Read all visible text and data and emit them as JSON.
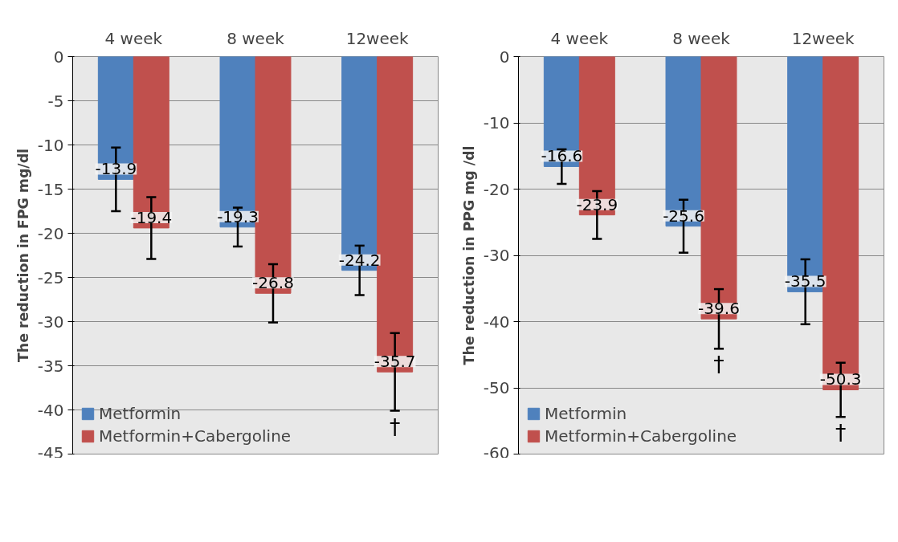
{
  "chart_data": [
    {
      "type": "bar",
      "categories": [
        "4 week",
        "8 week",
        "12week"
      ],
      "ylabel": "The reduction in FPG mg/dl",
      "ylim": [
        -45,
        0
      ],
      "yticks": [
        0,
        -5,
        -10,
        -15,
        -20,
        -25,
        -30,
        -35,
        -40,
        -45
      ],
      "grid": "y",
      "legend": "bottom left",
      "data_labels": true,
      "series": [
        {
          "name": "Metformin",
          "color": "#4f81bd",
          "values": [
            -13.9,
            -19.3,
            -24.2
          ],
          "errors": [
            3.6,
            2.2,
            2.8
          ]
        },
        {
          "name": "Metformin+Cabergoline",
          "color": "#c0504d",
          "values": [
            -19.4,
            -26.8,
            -35.7
          ],
          "errors": [
            3.5,
            3.3,
            4.4
          ]
        }
      ],
      "annotations": [
        "†"
      ]
    },
    {
      "type": "bar",
      "categories": [
        "4 week",
        "8 week",
        "12week"
      ],
      "ylabel": "The reduction in PPG mg /dl",
      "ylim": [
        -60,
        0
      ],
      "yticks": [
        0,
        -10,
        -20,
        -30,
        -40,
        -50,
        -60
      ],
      "grid": "y",
      "legend": "bottom left",
      "data_labels": true,
      "series": [
        {
          "name": "Metformin",
          "color": "#4f81bd",
          "values": [
            -16.6,
            -25.6,
            -35.5
          ],
          "errors": [
            2.6,
            4.0,
            4.9
          ]
        },
        {
          "name": "Metformin+Cabergoline",
          "color": "#c0504d",
          "values": [
            -23.9,
            -39.6,
            -50.3
          ],
          "errors": [
            3.6,
            4.5,
            4.1
          ]
        }
      ],
      "annotations": [
        "†",
        "†"
      ]
    }
  ]
}
